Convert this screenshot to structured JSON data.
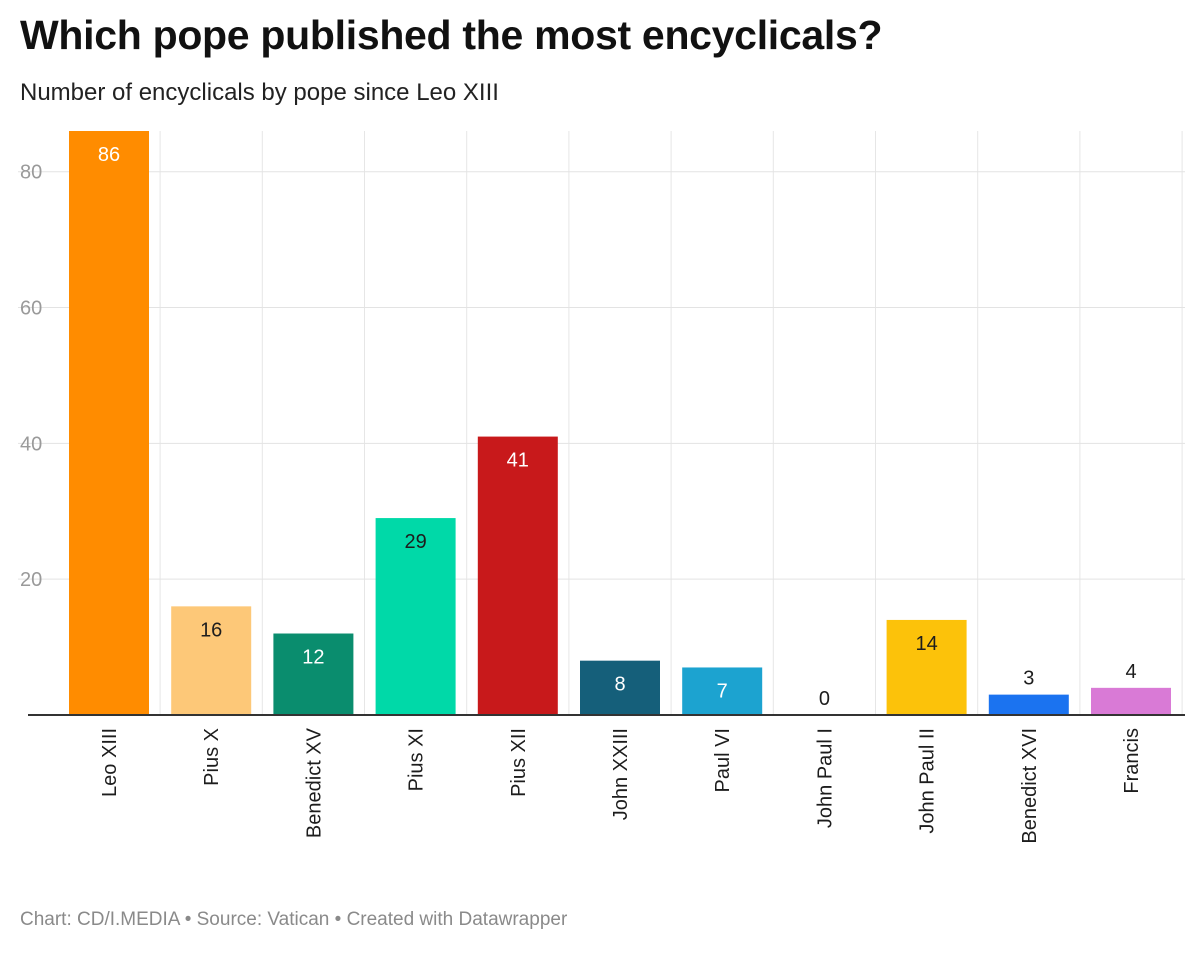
{
  "header": {
    "title": "Which pope published the most encyclicals?",
    "subtitle": "Number of encyclicals by pope since Leo XIII"
  },
  "footer": {
    "text": "Chart: CD/I.MEDIA • Source: Vatican • Created with Datawrapper"
  },
  "chart_data": {
    "type": "bar",
    "title": "Which pope published the most encyclicals?",
    "subtitle": "Number of encyclicals by pope since Leo XIII",
    "categories": [
      "Leo XIII",
      "Pius X",
      "Benedict XV",
      "Pius XI",
      "Pius XII",
      "John XXIII",
      "Paul VI",
      "John Paul I",
      "John Paul II",
      "Benedict XVI",
      "Francis"
    ],
    "values": [
      86,
      16,
      12,
      29,
      41,
      8,
      7,
      0,
      14,
      3,
      4
    ],
    "colors": [
      "#ff8c00",
      "#fdc878",
      "#0a8d6e",
      "#00d9a8",
      "#c8191b",
      "#155f7a",
      "#1ca3d0",
      "#999999",
      "#fcc20a",
      "#1b73f0",
      "#d97ad6"
    ],
    "yticks": [
      20,
      40,
      60,
      80
    ],
    "ylim": [
      0,
      86
    ],
    "xlabel": "",
    "ylabel": "",
    "grid": true,
    "legend": "none"
  }
}
